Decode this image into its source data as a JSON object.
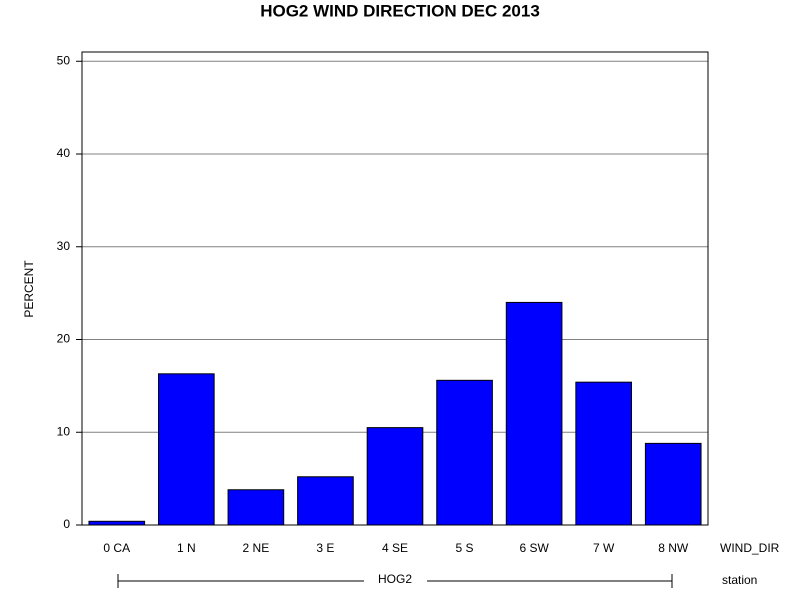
{
  "chart_data": {
    "type": "bar",
    "title": "HOG2 WIND DIRECTION DEC 2013",
    "y_label": "PERCENT",
    "x_label": "WIND_DIR",
    "group": {
      "label": "HOG2",
      "name": "station"
    },
    "categories": [
      "0 CA",
      "1 N",
      "2 NE",
      "3 E",
      "4 SE",
      "5 S",
      "6 SW",
      "7 W",
      "8 NW"
    ],
    "values": [
      0.4,
      16.3,
      3.8,
      5.2,
      10.5,
      15.6,
      24.0,
      15.4,
      8.8
    ],
    "color": "#0000ff",
    "ylim": [
      0,
      51
    ],
    "yticks": [
      0,
      10,
      20,
      30,
      40,
      50
    ],
    "grid": true
  }
}
